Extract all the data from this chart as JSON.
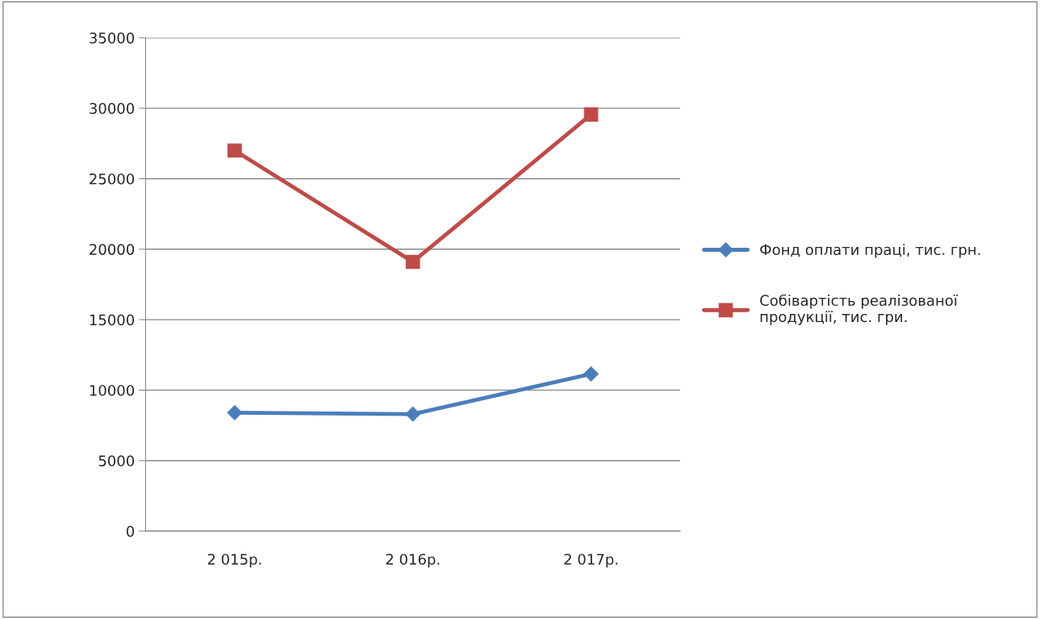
{
  "chart_data": {
    "type": "line",
    "categories": [
      "2 015р.",
      "2 016р.",
      "2 017р."
    ],
    "series": [
      {
        "name": "Фонд оплати праці, тис. грн.",
        "color": "#4a7ebb",
        "marker": "diamond",
        "values": [
          8400,
          8300,
          11150
        ]
      },
      {
        "name": "Собівартість реалізованої\nпродукції, тис. гри.",
        "color": "#be4b48",
        "marker": "square",
        "values": [
          27000,
          19100,
          29550
        ]
      }
    ],
    "ylim": [
      0,
      35000
    ],
    "yticks": [
      0,
      5000,
      10000,
      15000,
      20000,
      25000,
      30000,
      35000
    ],
    "grid": "y",
    "legend": "right"
  }
}
